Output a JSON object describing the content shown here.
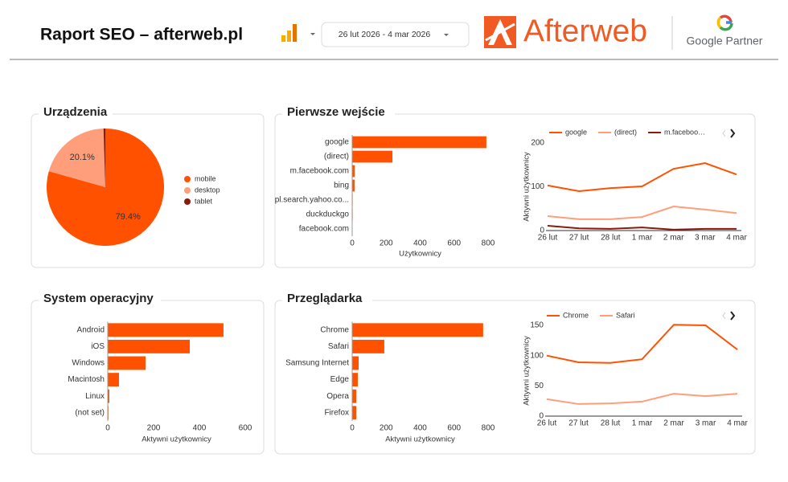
{
  "header": {
    "title": "Raport SEO – afterweb.pl",
    "date_range": "26 lut 2026 - 4 mar 2026",
    "brand": "Afterweb",
    "partner": "Google Partner"
  },
  "chart_data": [
    {
      "type": "pie",
      "title": "Urządzenia",
      "categories": [
        "mobile",
        "desktop",
        "tablet"
      ],
      "values": [
        79.4,
        20.1,
        0.5
      ],
      "value_labels": [
        "79.4%",
        "20.1%",
        null
      ],
      "colors": [
        "#ff5100",
        "#ff9e7a",
        "#8b1a0d"
      ]
    },
    {
      "type": "bar",
      "horizontal": true,
      "title": "Pierwsze wejście",
      "categories": [
        "google",
        "(direct)",
        "m.facebook.com",
        "bing",
        "pl.search.yahoo.co...",
        "duckduckgo",
        "facebook.com"
      ],
      "values": [
        790,
        237,
        15,
        14,
        3,
        3,
        2
      ],
      "color": "#ff5100",
      "xlim": [
        0,
        800
      ],
      "xticks": [
        0,
        200,
        400,
        600,
        800
      ],
      "xlabel": "Użytkownicy"
    },
    {
      "type": "line",
      "x": [
        "26 lut",
        "27 lut",
        "28 lut",
        "1 mar",
        "2 mar",
        "3 mar",
        "4 mar"
      ],
      "series": [
        {
          "name": "google",
          "color": "#ff5100",
          "values": [
            103,
            90,
            97,
            101,
            141,
            154,
            128
          ]
        },
        {
          "name": "(direct)",
          "color": "#ff9e7a",
          "values": [
            33,
            26,
            26,
            31,
            55,
            48,
            40
          ]
        },
        {
          "name": "m.faceboo…",
          "color": "#8b1a0d",
          "values": [
            11,
            5,
            4,
            7,
            2,
            4,
            4
          ]
        }
      ],
      "ylim": [
        0,
        200
      ],
      "yticks": [
        0,
        100,
        200
      ],
      "ylabel": "Aktywni użytkownicy"
    },
    {
      "type": "bar",
      "horizontal": true,
      "title": "System operacyjny",
      "categories": [
        "Android",
        "iOS",
        "Windows",
        "Macintosh",
        "Linux",
        "(not set)"
      ],
      "values": [
        505,
        358,
        165,
        49,
        7,
        3
      ],
      "color": "#ff5100",
      "xlim": [
        0,
        600
      ],
      "xticks": [
        0,
        200,
        400,
        600
      ],
      "xlabel": "Aktywni użytkownicy"
    },
    {
      "type": "bar",
      "horizontal": true,
      "title": "Przeglądarka",
      "categories": [
        "Chrome",
        "Safari",
        "Samsung Internet",
        "Edge",
        "Opera",
        "Firefox"
      ],
      "values": [
        771,
        189,
        38,
        33,
        24,
        24
      ],
      "color": "#ff5100",
      "xlim": [
        0,
        800
      ],
      "xticks": [
        0,
        200,
        400,
        600,
        800
      ],
      "xlabel": "Aktywni użytkownicy"
    },
    {
      "type": "line",
      "x": [
        "26 lut",
        "27 lut",
        "28 lut",
        "1 mar",
        "2 mar",
        "3 mar",
        "4 mar"
      ],
      "series": [
        {
          "name": "Chrome",
          "color": "#ff5100",
          "values": [
            100,
            89,
            88,
            94,
            151,
            150,
            110
          ]
        },
        {
          "name": "Safari",
          "color": "#ff9e7a",
          "values": [
            28,
            20,
            21,
            24,
            37,
            33,
            37
          ]
        }
      ],
      "ylim": [
        0,
        150
      ],
      "yticks": [
        0,
        50,
        100,
        150
      ],
      "ylabel": "Aktywni użytkownicy"
    }
  ]
}
